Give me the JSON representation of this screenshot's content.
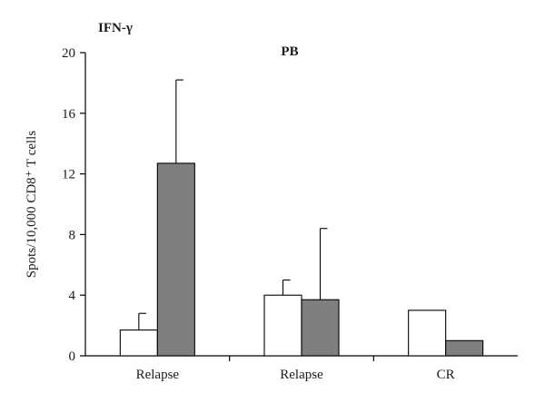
{
  "corner_label": "IFN-γ",
  "chart_data": {
    "type": "bar",
    "title": "PB",
    "ylabel": "Spots/10,000 CD8⁺ T cells",
    "xlabel": "",
    "categories": [
      "Relapse",
      "Relapse",
      "CR"
    ],
    "ylim": [
      0,
      20
    ],
    "yticks": [
      0,
      4,
      8,
      12,
      16,
      20
    ],
    "grid": false,
    "series": [
      {
        "color": "#ffffff",
        "values": [
          1.7,
          4.0,
          3.0
        ],
        "error_upper": [
          2.8,
          5.0,
          null
        ]
      },
      {
        "color": "#7f7f7f",
        "values": [
          12.7,
          3.7,
          1.0
        ],
        "error_upper": [
          18.2,
          8.4,
          null
        ]
      }
    ]
  }
}
